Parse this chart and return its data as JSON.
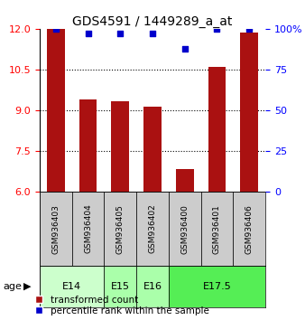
{
  "title": "GDS4591 / 1449289_a_at",
  "samples": [
    "GSM936403",
    "GSM936404",
    "GSM936405",
    "GSM936402",
    "GSM936400",
    "GSM936401",
    "GSM936406"
  ],
  "bar_values": [
    12.0,
    9.4,
    9.35,
    9.15,
    6.85,
    10.6,
    11.85
  ],
  "percentile_values": [
    100,
    97,
    97,
    97,
    88,
    100,
    100
  ],
  "age_groups": [
    {
      "label": "E14",
      "start": 0,
      "end": 2,
      "color": "#ccffcc"
    },
    {
      "label": "E15",
      "start": 2,
      "end": 3,
      "color": "#aaffaa"
    },
    {
      "label": "E16",
      "start": 3,
      "end": 4,
      "color": "#aaffaa"
    },
    {
      "label": "E17.5",
      "start": 4,
      "end": 7,
      "color": "#55ee55"
    }
  ],
  "ylim_left": [
    6,
    12
  ],
  "ylim_right": [
    0,
    100
  ],
  "yticks_left": [
    6,
    7.5,
    9,
    10.5,
    12
  ],
  "yticks_right": [
    0,
    25,
    50,
    75,
    100
  ],
  "bar_color": "#aa1111",
  "dot_color": "#0000cc",
  "background_color": "#ffffff",
  "sample_box_color": "#cccccc",
  "legend_bar_label": "transformed count",
  "legend_dot_label": "percentile rank within the sample",
  "age_label": "age"
}
